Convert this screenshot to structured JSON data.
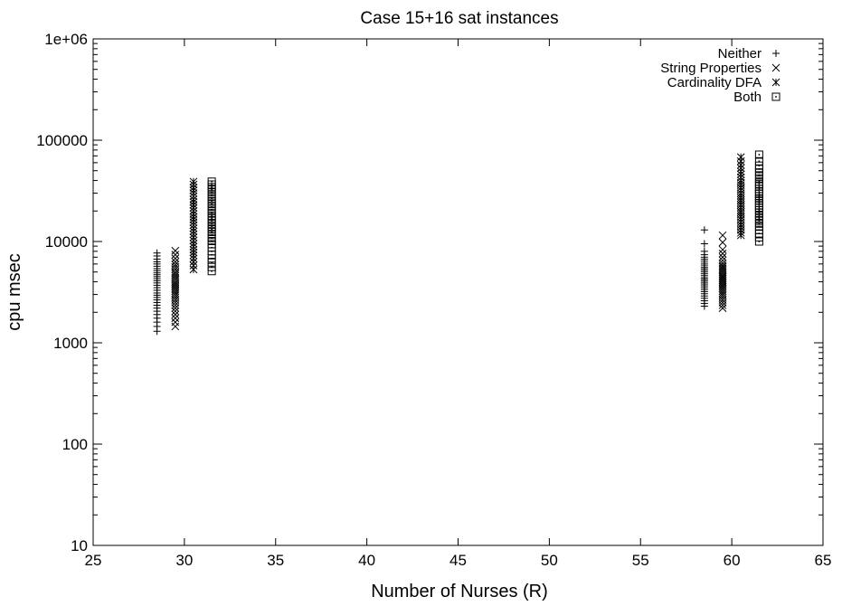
{
  "chart_data": {
    "type": "scatter",
    "title": "Case 15+16 sat instances",
    "xlabel": "Number of Nurses (R)",
    "ylabel": "cpu msec",
    "xlim": [
      25,
      65
    ],
    "ylim": [
      10,
      1000000
    ],
    "yscale": "log",
    "x_ticks": [
      25,
      30,
      35,
      40,
      45,
      50,
      55,
      60,
      65
    ],
    "y_ticks": [
      {
        "value": 10,
        "label": "10"
      },
      {
        "value": 100,
        "label": "100"
      },
      {
        "value": 1000,
        "label": "1000"
      },
      {
        "value": 10000,
        "label": "10000"
      },
      {
        "value": 100000,
        "label": "100000"
      },
      {
        "value": 1000000,
        "label": "1e+06"
      }
    ],
    "grid": false,
    "legend_position": "top-right",
    "series": [
      {
        "name": "Neither",
        "marker": "plus",
        "x": [
          28.5,
          28.5,
          28.5,
          28.5,
          28.5,
          28.5,
          28.5,
          28.5,
          28.5,
          28.5,
          28.5,
          28.5,
          28.5,
          28.5,
          28.5,
          28.5,
          28.5,
          28.5,
          28.5,
          28.5,
          28.5,
          28.5,
          28.5,
          28.5,
          28.5,
          28.5,
          28.5,
          28.5,
          28.5,
          28.5,
          58.5,
          58.5,
          58.5,
          58.5,
          58.5,
          58.5,
          58.5,
          58.5,
          58.5,
          58.5,
          58.5,
          58.5,
          58.5,
          58.5,
          58.5,
          58.5,
          58.5,
          58.5,
          58.5,
          58.5,
          58.5,
          58.5,
          58.5,
          58.5,
          58.5,
          58.5,
          58.5,
          58.5,
          58.5,
          58.5
        ],
        "y": [
          1300,
          1450,
          1600,
          1750,
          1900,
          2050,
          2200,
          2350,
          2500,
          2650,
          2800,
          2950,
          3100,
          3300,
          3500,
          3700,
          3900,
          4100,
          4300,
          4500,
          4700,
          4900,
          5150,
          5400,
          5700,
          6000,
          6300,
          6700,
          7200,
          7700,
          2300,
          2450,
          2600,
          2750,
          2900,
          3050,
          3200,
          3350,
          3500,
          3650,
          3800,
          3950,
          4100,
          4250,
          4400,
          4600,
          4800,
          5000,
          5200,
          5400,
          5600,
          5850,
          6100,
          6400,
          6700,
          7000,
          7400,
          8000,
          9500,
          13000
        ]
      },
      {
        "name": "String Properties",
        "marker": "cross",
        "x": [
          29.5,
          29.5,
          29.5,
          29.5,
          29.5,
          29.5,
          29.5,
          29.5,
          29.5,
          29.5,
          29.5,
          29.5,
          29.5,
          29.5,
          29.5,
          29.5,
          29.5,
          29.5,
          29.5,
          29.5,
          29.5,
          29.5,
          29.5,
          29.5,
          29.5,
          29.5,
          29.5,
          29.5,
          29.5,
          29.5,
          59.5,
          59.5,
          59.5,
          59.5,
          59.5,
          59.5,
          59.5,
          59.5,
          59.5,
          59.5,
          59.5,
          59.5,
          59.5,
          59.5,
          59.5,
          59.5,
          59.5,
          59.5,
          59.5,
          59.5,
          59.5,
          59.5,
          59.5,
          59.5,
          59.5,
          59.5,
          59.5,
          59.5,
          59.5,
          59.5
        ],
        "y": [
          1450,
          1600,
          1750,
          1900,
          2050,
          2200,
          2350,
          2500,
          2650,
          2800,
          2950,
          3100,
          3250,
          3400,
          3550,
          3700,
          3850,
          4000,
          4200,
          4400,
          4600,
          4800,
          5000,
          5300,
          5600,
          5900,
          6300,
          6800,
          7400,
          8100,
          2200,
          2350,
          2500,
          2650,
          2800,
          2950,
          3100,
          3250,
          3400,
          3550,
          3700,
          3850,
          4000,
          4150,
          4300,
          4450,
          4600,
          4800,
          5000,
          5200,
          5400,
          5600,
          5800,
          6100,
          6500,
          7000,
          7600,
          8300,
          9800,
          11500
        ]
      },
      {
        "name": "Cardinality DFA",
        "marker": "star",
        "x": [
          30.5,
          30.5,
          30.5,
          30.5,
          30.5,
          30.5,
          30.5,
          30.5,
          30.5,
          30.5,
          30.5,
          30.5,
          30.5,
          30.5,
          30.5,
          30.5,
          30.5,
          30.5,
          30.5,
          30.5,
          30.5,
          30.5,
          30.5,
          30.5,
          30.5,
          30.5,
          30.5,
          30.5,
          30.5,
          30.5,
          60.5,
          60.5,
          60.5,
          60.5,
          60.5,
          60.5,
          60.5,
          60.5,
          60.5,
          60.5,
          60.5,
          60.5,
          60.5,
          60.5,
          60.5,
          60.5,
          60.5,
          60.5,
          60.5,
          60.5,
          60.5,
          60.5,
          60.5,
          60.5,
          60.5,
          60.5,
          60.5,
          60.5,
          60.5,
          60.5
        ],
        "y": [
          5300,
          5800,
          6300,
          6800,
          7300,
          7800,
          8300,
          8900,
          9500,
          10200,
          11000,
          11800,
          12600,
          13500,
          14500,
          15500,
          16500,
          17500,
          18700,
          20000,
          21500,
          23000,
          24500,
          26000,
          28000,
          30000,
          32000,
          34000,
          36500,
          39000,
          11500,
          12200,
          13000,
          13800,
          14600,
          15500,
          16500,
          17500,
          18500,
          19500,
          20500,
          21700,
          23000,
          24300,
          25600,
          27000,
          28500,
          30000,
          32000,
          34000,
          36000,
          38000,
          40000,
          43000,
          46000,
          49000,
          53000,
          57000,
          62000,
          68000
        ]
      },
      {
        "name": "Both",
        "marker": "square-dot",
        "x": [
          31.5,
          31.5,
          31.5,
          31.5,
          31.5,
          31.5,
          31.5,
          31.5,
          31.5,
          31.5,
          31.5,
          31.5,
          31.5,
          31.5,
          31.5,
          31.5,
          31.5,
          31.5,
          31.5,
          31.5,
          31.5,
          31.5,
          31.5,
          31.5,
          31.5,
          31.5,
          31.5,
          31.5,
          31.5,
          31.5,
          61.5,
          61.5,
          61.5,
          61.5,
          61.5,
          61.5,
          61.5,
          61.5,
          61.5,
          61.5,
          61.5,
          61.5,
          61.5,
          61.5,
          61.5,
          61.5,
          61.5,
          61.5,
          61.5,
          61.5,
          61.5,
          61.5,
          61.5,
          61.5,
          61.5,
          61.5,
          61.5,
          61.5,
          61.5,
          61.5
        ],
        "y": [
          5100,
          5600,
          6200,
          6800,
          7400,
          8000,
          8700,
          9400,
          10100,
          10800,
          11600,
          12400,
          13200,
          14000,
          15000,
          16000,
          17000,
          18000,
          19200,
          20500,
          22000,
          23500,
          25000,
          26700,
          28500,
          30500,
          32500,
          34500,
          36500,
          39000,
          10000,
          11000,
          12000,
          13000,
          14000,
          15000,
          16000,
          17000,
          18000,
          19200,
          20400,
          21600,
          22800,
          24000,
          25300,
          26600,
          28000,
          29500,
          31000,
          33000,
          35000,
          37000,
          39000,
          42000,
          45000,
          48000,
          52000,
          56000,
          62000,
          72000
        ]
      }
    ]
  }
}
